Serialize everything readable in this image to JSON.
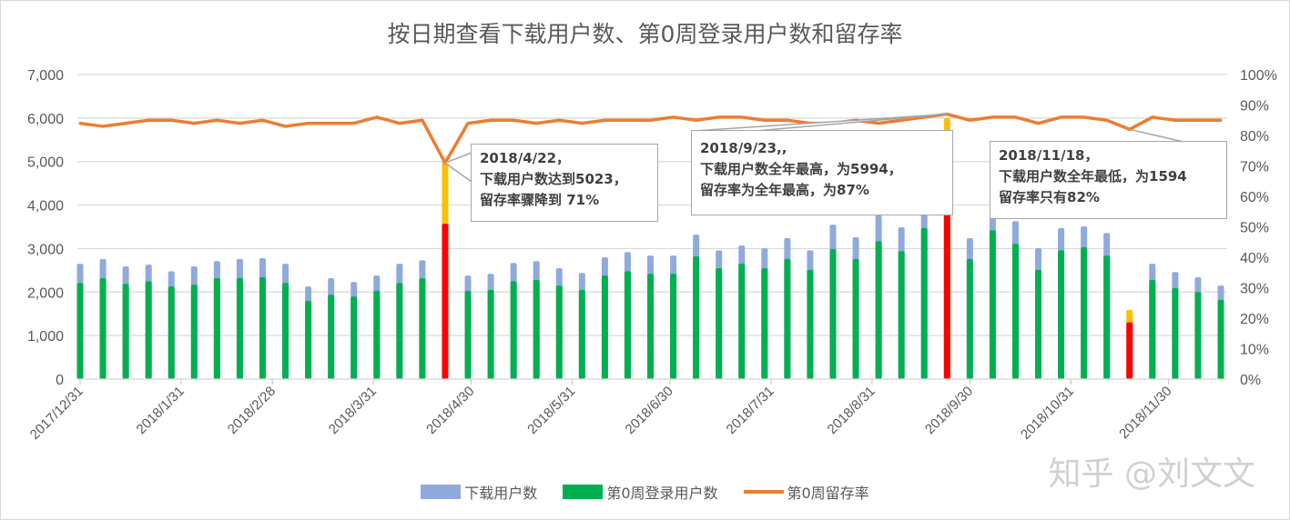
{
  "chart_data": {
    "type": "bar+line",
    "title": "按日期查看下载用户数、第0周登录用户数和留存率",
    "x": [
      "2017/12/31",
      "2018/1/7",
      "2018/1/14",
      "2018/1/21",
      "2018/1/28",
      "2018/2/4",
      "2018/2/11",
      "2018/2/18",
      "2018/2/25",
      "2018/3/4",
      "2018/3/11",
      "2018/3/18",
      "2018/3/25",
      "2018/4/1",
      "2018/4/8",
      "2018/4/15",
      "2018/4/22",
      "2018/4/29",
      "2018/5/6",
      "2018/5/13",
      "2018/5/20",
      "2018/5/27",
      "2018/6/3",
      "2018/6/10",
      "2018/6/17",
      "2018/6/24",
      "2018/7/1",
      "2018/7/8",
      "2018/7/15",
      "2018/7/22",
      "2018/7/29",
      "2018/8/5",
      "2018/8/12",
      "2018/8/19",
      "2018/8/26",
      "2018/9/2",
      "2018/9/9",
      "2018/9/16",
      "2018/9/23",
      "2018/9/30",
      "2018/10/7",
      "2018/10/14",
      "2018/10/21",
      "2018/10/28",
      "2018/11/4",
      "2018/11/11",
      "2018/11/18",
      "2018/11/25",
      "2018/12/2",
      "2018/12/9",
      "2018/12/16"
    ],
    "x_tick_labels": [
      "2017/12/31",
      "2018/1/31",
      "2018/2/28",
      "2018/3/31",
      "2018/4/30",
      "2018/5/31",
      "2018/6/30",
      "2018/7/31",
      "2018/8/31",
      "2018/9/30",
      "2018/10/31",
      "2018/11/30"
    ],
    "series": [
      {
        "name": "下载用户数",
        "type": "bar",
        "axis": "left",
        "color": "#8FAADC",
        "values": [
          2650,
          2760,
          2590,
          2630,
          2480,
          2590,
          2710,
          2760,
          2780,
          2650,
          2130,
          2320,
          2230,
          2380,
          2650,
          2730,
          5023,
          2380,
          2420,
          2670,
          2710,
          2550,
          2440,
          2800,
          2920,
          2840,
          2840,
          3320,
          2960,
          3070,
          3010,
          3240,
          2960,
          3550,
          3260,
          3760,
          3490,
          3800,
          5994,
          3240,
          3740,
          3630,
          3010,
          3470,
          3510,
          3360,
          1594,
          2650,
          2460,
          2340,
          2150
        ]
      },
      {
        "name": "第0周登录用户数",
        "type": "bar",
        "axis": "left",
        "color": "#00B050",
        "values": [
          2210,
          2320,
          2190,
          2250,
          2130,
          2170,
          2320,
          2320,
          2340,
          2210,
          1800,
          1940,
          1900,
          2030,
          2210,
          2320,
          3570,
          2030,
          2050,
          2250,
          2280,
          2150,
          2050,
          2380,
          2480,
          2420,
          2420,
          2820,
          2550,
          2650,
          2550,
          2760,
          2510,
          2990,
          2760,
          3170,
          2940,
          3470,
          5210,
          2760,
          3420,
          3110,
          2510,
          2960,
          3030,
          2840,
          1307,
          2280,
          2090,
          2000,
          1820
        ]
      },
      {
        "name": "第0周留存率",
        "type": "line",
        "axis": "right",
        "color": "#ED7D31",
        "values": [
          84,
          83,
          84,
          85,
          85,
          84,
          85,
          84,
          85,
          83,
          84,
          84,
          84,
          86,
          84,
          85,
          71,
          84,
          85,
          85,
          84,
          85,
          84,
          85,
          85,
          85,
          86,
          85,
          86,
          86,
          85,
          85,
          84,
          84,
          85,
          84,
          85,
          86,
          87,
          85,
          86,
          86,
          84,
          86,
          86,
          85,
          82,
          86,
          85,
          85,
          85
        ]
      }
    ],
    "highlight_dates": [
      "2018/4/22",
      "2018/9/23",
      "2018/11/18"
    ],
    "highlight_colors": {
      "download": "#FFC000",
      "login": "#FF0000"
    },
    "y_left": {
      "range": [
        0,
        7000
      ],
      "ticks": [
        "0",
        "1,000",
        "2,000",
        "3,000",
        "4,000",
        "5,000",
        "6,000",
        "7,000"
      ]
    },
    "y_right": {
      "range": [
        0,
        100
      ],
      "unit": "%",
      "ticks": [
        "0%",
        "10%",
        "20%",
        "30%",
        "40%",
        "50%",
        "60%",
        "70%",
        "80%",
        "90%",
        "100%"
      ]
    },
    "grid": true,
    "legend_position": "bottom",
    "annotations": [
      {
        "date": "2018/4/22",
        "lines": [
          "2018/4/22，",
          "下载用户数达到5023，",
          "留存率骤降到 71%"
        ]
      },
      {
        "date": "2018/9/23",
        "lines": [
          "2018/9/23,,",
          "下载用户数全年最高，为5994，",
          "留存率为全年最高，为87%"
        ]
      },
      {
        "date": "2018/11/18",
        "lines": [
          "2018/11/18，",
          "下载用户数全年最低，为1594",
          "留存率只有82%"
        ]
      }
    ]
  },
  "watermark": "知乎 @刘文文"
}
